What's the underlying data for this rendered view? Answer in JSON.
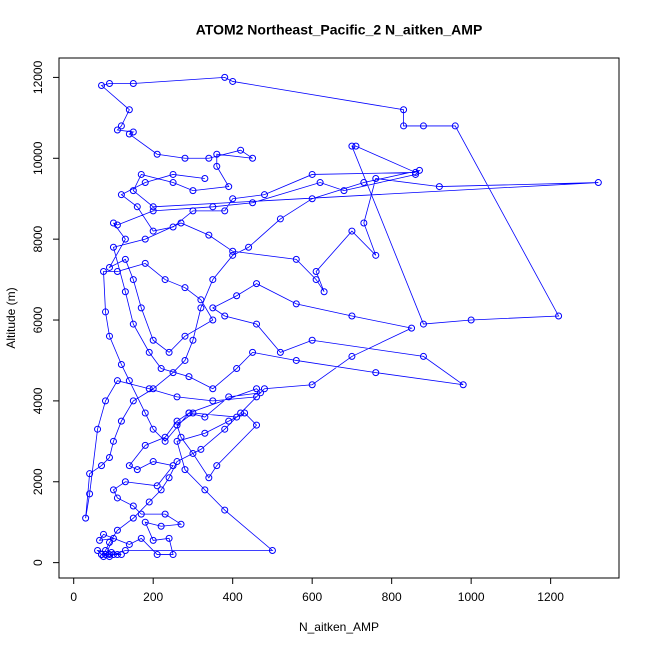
{
  "chart_data": {
    "type": "line",
    "title": "ATOM2 Northeast_Pacific_2 N_aitken_AMP",
    "x_label": "N_aitken_AMP",
    "y_label": "Altitude (m)",
    "color": "#0000ff",
    "markers": true,
    "xlim": [
      -37,
      1372
    ],
    "ylim": [
      -380,
      12480
    ],
    "xticks": [
      0,
      200,
      400,
      600,
      800,
      1000,
      1200
    ],
    "yticks": [
      0,
      2000,
      4000,
      6000,
      8000,
      10000,
      12000
    ],
    "x": [
      75,
      90,
      110,
      70,
      60,
      95,
      120,
      80,
      100,
      65,
      75,
      140,
      170,
      210,
      250,
      240,
      200,
      180,
      220,
      270,
      230,
      170,
      150,
      110,
      100,
      130,
      210,
      250,
      200,
      160,
      140,
      180,
      230,
      260,
      290,
      330,
      390,
      470,
      460,
      290,
      230,
      200,
      180,
      140,
      120,
      90,
      80,
      75,
      110,
      180,
      230,
      280,
      320,
      350,
      280,
      240,
      200,
      170,
      150,
      130,
      90,
      130,
      100,
      110,
      200,
      350,
      450,
      620,
      680,
      860,
      870,
      730,
      600,
      520,
      440,
      400,
      350,
      320,
      300,
      280,
      250,
      200,
      150,
      120,
      100,
      90,
      70,
      40,
      30,
      40,
      60,
      80,
      110,
      190,
      260,
      350,
      460,
      420,
      380,
      320,
      260,
      240,
      220,
      190,
      150,
      110,
      90,
      80,
      70,
      90,
      100,
      130,
      500,
      380,
      330,
      280,
      260,
      330,
      390,
      430,
      460,
      360,
      340,
      300,
      270,
      260,
      300,
      410,
      480,
      600,
      700,
      850,
      700,
      560,
      460,
      410,
      350,
      380,
      460,
      520,
      600,
      880,
      980,
      760,
      560,
      450,
      410,
      350,
      290,
      220,
      190,
      150,
      130,
      100,
      180,
      270,
      340,
      400,
      560,
      610,
      630,
      610,
      700,
      760,
      730,
      760,
      920,
      1320,
      200,
      150,
      170,
      250,
      300,
      390,
      360,
      360,
      450,
      420,
      340,
      280,
      210,
      140,
      150,
      110,
      120,
      140,
      70,
      90,
      150,
      380,
      400,
      830,
      830,
      880,
      960,
      1220,
      1000,
      880,
      700,
      710,
      860,
      600,
      480,
      400,
      380,
      300,
      250,
      200,
      160,
      120,
      180,
      250,
      330
    ],
    "series": [
      {
        "name": "N_aitken_AMP",
        "values": [
          150,
          200,
          200,
          200,
          300,
          250,
          200,
          200,
          600,
          550,
          700,
          450,
          600,
          200,
          200,
          600,
          550,
          1000,
          900,
          950,
          1200,
          1200,
          1400,
          1600,
          1800,
          2000,
          1900,
          2400,
          2500,
          2300,
          2400,
          2900,
          3100,
          3500,
          3700,
          3600,
          4100,
          4200,
          4300,
          3700,
          3000,
          3300,
          3700,
          4500,
          4900,
          5600,
          6200,
          7200,
          7200,
          7400,
          7000,
          6800,
          6500,
          6000,
          5600,
          5200,
          5500,
          6300,
          7000,
          7500,
          7300,
          8000,
          8400,
          8350,
          8700,
          8800,
          8900,
          9400,
          9200,
          9600,
          9700,
          9400,
          9000,
          8500,
          7800,
          7600,
          7000,
          6300,
          5500,
          5000,
          4700,
          4300,
          4000,
          3500,
          3000,
          2600,
          2400,
          2200,
          1100,
          1700,
          3300,
          4000,
          4500,
          4300,
          4100,
          4000,
          4100,
          3700,
          3300,
          2800,
          2500,
          2100,
          1800,
          1500,
          1100,
          800,
          500,
          300,
          200,
          150,
          200,
          300,
          300,
          1300,
          1800,
          2300,
          3000,
          3200,
          3500,
          3700,
          3400,
          2400,
          2100,
          2700,
          3100,
          3400,
          3700,
          3600,
          4300,
          4400,
          5100,
          5800,
          6100,
          6400,
          6900,
          6600,
          6300,
          6100,
          5900,
          5200,
          5500,
          5100,
          4400,
          4700,
          5000,
          5200,
          4800,
          4300,
          4600,
          4800,
          5200,
          5900,
          6700,
          7800,
          8000,
          8400,
          8100,
          7700,
          7500,
          7000,
          6700,
          7200,
          8200,
          7600,
          8400,
          9500,
          9300,
          9400,
          8800,
          9200,
          9600,
          9400,
          9200,
          9300,
          9800,
          10100,
          10000,
          10200,
          10000,
          10000,
          10100,
          10600,
          10650,
          10700,
          10800,
          11200,
          11800,
          11850,
          11850,
          12000,
          11900,
          11200,
          10800,
          10800,
          10800,
          6100,
          6000,
          5900,
          10300,
          10300,
          9650,
          9600,
          9100,
          9000,
          8700,
          8700,
          8300,
          8200,
          8800,
          9100,
          9400,
          9600,
          9500
        ]
      }
    ]
  }
}
